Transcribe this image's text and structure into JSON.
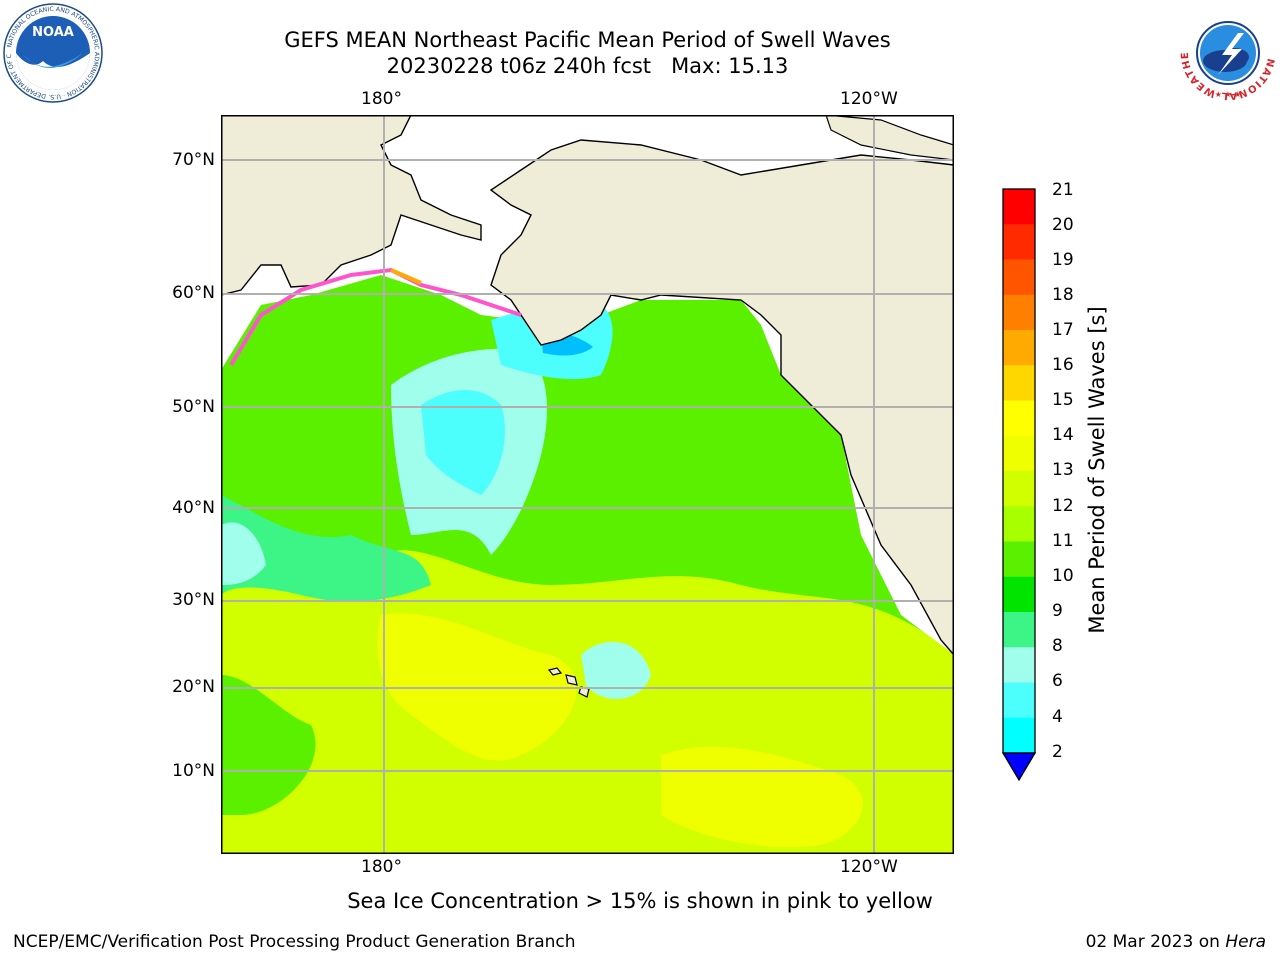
{
  "title": {
    "line1": "GEFS MEAN Northeast Pacific Mean Period of Swell Waves",
    "line2": "20230228 t06z 240h fcst   Max: 15.13"
  },
  "map": {
    "top_lon_ticks": [
      "180°",
      "120°W"
    ],
    "bottom_lon_ticks": [
      "180°",
      "120°W"
    ],
    "lat_ticks": [
      "70°N",
      "60°N",
      "50°N",
      "40°N",
      "30°N",
      "20°N",
      "10°N"
    ],
    "colors": {
      "land": "#efedd8",
      "grid": "#b0b0b0",
      "sea_ice_missing": "#ffffff"
    }
  },
  "colorbar": {
    "title": "Mean Period of Swell Waves [s]",
    "labels": [
      "21",
      "20",
      "19",
      "18",
      "17",
      "16",
      "15",
      "14",
      "13",
      "12",
      "11",
      "10",
      "9",
      "8",
      "6",
      "4",
      "2"
    ],
    "colors": [
      "#ff0000",
      "#ff2a00",
      "#ff5500",
      "#ff8000",
      "#ffaa00",
      "#ffd700",
      "#ffff00",
      "#f0ff00",
      "#d2ff00",
      "#a8ff00",
      "#5af000",
      "#00e400",
      "#3cf586",
      "#a0ffec",
      "#4cfffd",
      "#00ffff",
      "#00bfff",
      "#0070ff",
      "#0000ff"
    ]
  },
  "note": "Sea Ice Concentration > 15% is shown in pink to yellow",
  "footer": {
    "left": "NCEP/EMC/Verification Post Processing Product Generation Branch",
    "right_prefix": "02 Mar 2023 on ",
    "right_host": "Hera"
  },
  "logos": {
    "noaa_text": "NOAA",
    "noaa_ring_text": "NATIONAL OCEANIC AND ATMOSPHERIC ADMINISTRATION · U.S. DEPARTMENT OF COMMERCE",
    "nws_ring_text": "NATIONAL WEATHER SERVICE"
  }
}
